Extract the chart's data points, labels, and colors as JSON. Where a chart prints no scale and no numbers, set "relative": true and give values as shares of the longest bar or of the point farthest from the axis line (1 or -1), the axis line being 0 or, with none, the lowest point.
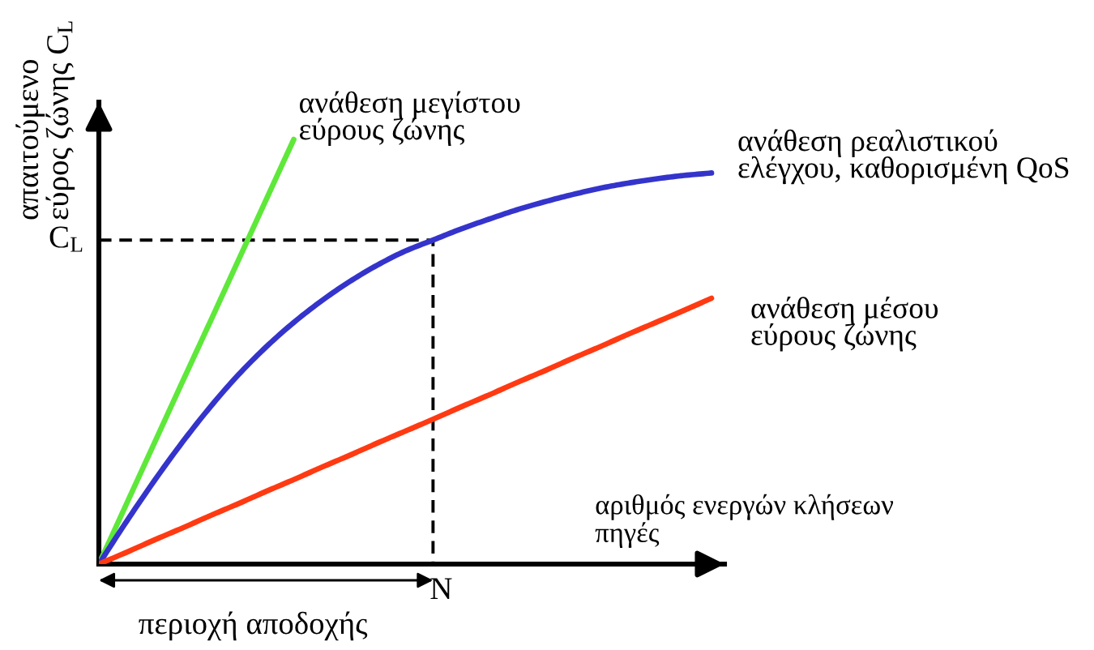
{
  "chart_data": {
    "type": "line",
    "relative": true,
    "xlabel": "αριθμός ενεργών κλήσεων\nπηγές",
    "ylabel": "απαιτούμενο\nεύρος ζώνης C$_{L}$",
    "categories": [
      null,
      null,
      null,
      null,
      null,
      null,
      null,
      null,
      null,
      null,
      null,
      null,
      null,
      null,
      null,
      null,
      null,
      null,
      null,
      null,
      null,
      null,
      null
    ],
    "series": [
      {
        "name": "ανάθεση μεγίστου\nεύρους ζώνης",
        "color": "#5ee83a",
        "values": [
          0,
          0.143,
          0.286,
          0.429,
          0.571,
          0.714,
          0.857,
          1,
          null,
          null,
          null,
          null,
          null,
          null,
          null,
          null,
          null,
          null,
          null,
          null,
          null,
          null,
          null
        ]
      },
      {
        "name": "ανάθεση ρεαλιστικού\nελέγχου, καθορισμένη QoS",
        "color": "#3434cc",
        "values": [
          0,
          0.101,
          0.197,
          0.287,
          0.37,
          0.445,
          0.511,
          0.569,
          0.62,
          0.665,
          0.704,
          0.737,
          0.763,
          0.789,
          0.812,
          0.834,
          0.853,
          0.87,
          0.885,
          0.897,
          0.907,
          0.915,
          0.921
        ]
      },
      {
        "name": "ανάθεση μέσου\nεύρους ζώνης",
        "color": "#ff3a12",
        "values": [
          0,
          0.028,
          0.057,
          0.085,
          0.114,
          0.142,
          0.171,
          0.199,
          0.228,
          0.256,
          0.285,
          0.313,
          0.341,
          0.37,
          0.398,
          0.427,
          0.455,
          0.484,
          0.512,
          0.541,
          0.569,
          0.597,
          0.626
        ]
      }
    ],
    "ref_lines": [
      {
        "axis": "y",
        "value": 0.763,
        "label": "C$_{L}$",
        "color": "#000000",
        "line_style": "dashed"
      }
    ],
    "annotations": [
      "N",
      "περιοχή αποδοχής"
    ]
  }
}
